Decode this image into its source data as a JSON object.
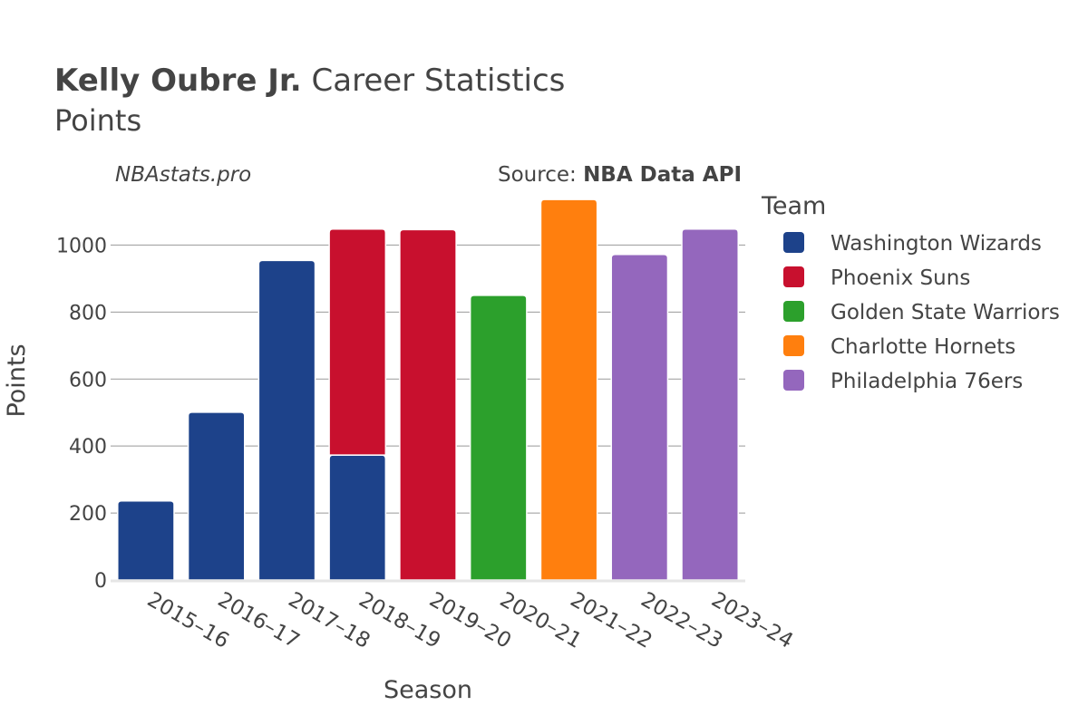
{
  "header": {
    "player": "Kelly Oubre Jr.",
    "title_rest": " Career Statistics",
    "subtitle": "Points",
    "site": "NBAstats.pro",
    "source_label": "Source: ",
    "source_name": "NBA Data API"
  },
  "legend": {
    "title": "Team"
  },
  "colors": {
    "text": "#444444",
    "grid": "#999999"
  },
  "chart_data": {
    "type": "bar",
    "stacked": true,
    "xlabel": "Season",
    "ylabel": "Points",
    "ylim": [
      0,
      1150
    ],
    "yticks": [
      0,
      200,
      400,
      600,
      800,
      1000
    ],
    "grid": true,
    "legend_position": "right",
    "categories": [
      "2015–16",
      "2016–17",
      "2017–18",
      "2018–19",
      "2019–20",
      "2020–21",
      "2021–22",
      "2022–23",
      "2023–24"
    ],
    "series": [
      {
        "name": "Washington Wizards",
        "color": "#1d428a",
        "values": [
          236,
          501,
          954,
          373,
          0,
          0,
          0,
          0,
          0
        ]
      },
      {
        "name": "Phoenix Suns",
        "color": "#c8102e",
        "values": [
          0,
          0,
          0,
          675,
          1046,
          0,
          0,
          0,
          0
        ]
      },
      {
        "name": "Golden State Warriors",
        "color": "#2ca02c",
        "values": [
          0,
          0,
          0,
          0,
          0,
          850,
          0,
          0,
          0
        ]
      },
      {
        "name": "Charlotte Hornets",
        "color": "#ff7f0e",
        "values": [
          0,
          0,
          0,
          0,
          0,
          0,
          1136,
          0,
          0
        ]
      },
      {
        "name": "Philadelphia 76ers",
        "color": "#9467bd",
        "values": [
          0,
          0,
          0,
          0,
          0,
          0,
          0,
          972,
          1048
        ]
      }
    ]
  }
}
